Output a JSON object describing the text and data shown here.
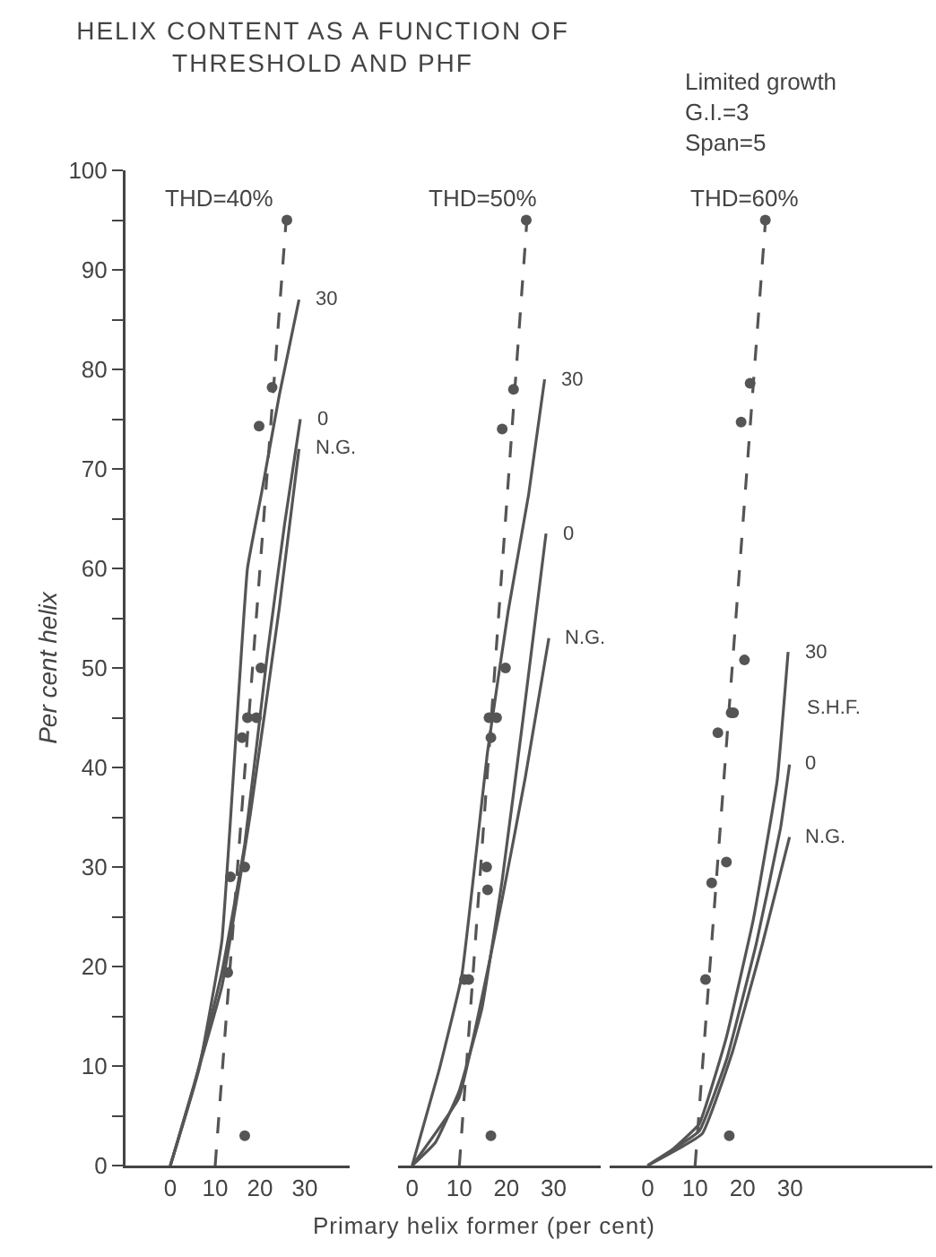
{
  "chart_data": [
    {
      "type": "line",
      "title": "HELIX CONTENT AS A FUNCTION OF THRESHOLD AND PHF",
      "subtitle": "THD=40%",
      "ylabel": "Per cent helix",
      "marker": "none",
      "xlim": [
        -10,
        40
      ],
      "xticks": [
        0,
        10,
        20,
        30
      ],
      "ylim": [
        0,
        100
      ],
      "yticks": [
        0,
        {
          "value": 5,
          "label": null
        },
        10,
        {
          "value": 15,
          "label": null
        },
        20,
        {
          "value": 25,
          "label": null
        },
        30,
        {
          "value": 35,
          "label": null
        },
        40,
        {
          "value": 45,
          "label": null
        },
        50,
        {
          "value": 55,
          "label": null
        },
        60,
        {
          "value": 65,
          "label": null
        },
        70,
        {
          "value": 75,
          "label": null
        },
        80,
        {
          "value": 85,
          "label": null
        },
        90,
        {
          "value": 95,
          "label": null
        },
        100
      ],
      "series": [
        {
          "name": "30",
          "color": "#555555",
          "x": [
            0,
            6.4,
            11.5,
            17.2,
            20.4,
            24.3,
            28.7
          ],
          "values": [
            0,
            9.7,
            22.6,
            60,
            67.7,
            77.4,
            87
          ]
        },
        {
          "name": "0",
          "color": "#555555",
          "x": [
            0,
            5.1,
            11.5,
            16.6,
            21.7,
            25.5,
            29
          ],
          "values": [
            0,
            7.7,
            19.4,
            32.3,
            51.6,
            64.5,
            75
          ]
        },
        {
          "name": "N.G.",
          "color": "#555555",
          "x": [
            0,
            11.5,
            17.9,
            24.3,
            28.7
          ],
          "values": [
            0,
            18,
            35.5,
            56,
            72
          ]
        },
        {
          "type": "line",
          "line_style": "dashed",
          "color": "#555555",
          "x": [
            10,
            26
          ],
          "values": [
            0,
            96
          ]
        },
        {
          "type": "scatter",
          "marker": "circle",
          "color": "#555555",
          "x": [
            16.6,
            12.8,
            13.4,
            16.6,
            16,
            17.2,
            19.2,
            20.2,
            19.8,
            22.7,
            26
          ],
          "values": [
            3,
            19.4,
            29,
            30,
            43,
            45,
            45,
            50,
            74.3,
            78.2,
            95
          ]
        }
      ]
    },
    {
      "type": "line",
      "subtitle": "THD=50%",
      "xlabel": "Primary helix former (per cent)",
      "tick_labels": "x",
      "marker": "none",
      "xlim": [
        -3,
        40
      ],
      "xticks": [
        0,
        10,
        20,
        30
      ],
      "ylim": [
        0,
        100
      ],
      "series": [
        {
          "name": "30",
          "color": "#555555",
          "x": [
            0,
            5.6,
            10.5,
            16,
            20.4,
            24.7,
            28.1
          ],
          "values": [
            0,
            9.4,
            19,
            41.6,
            55.8,
            67.4,
            79
          ]
        },
        {
          "name": "0",
          "color": "#555555",
          "x": [
            0,
            4.9,
            9.9,
            14.8,
            19.1,
            23.5,
            28.4
          ],
          "values": [
            0,
            2.3,
            7.4,
            15.8,
            28.7,
            44.8,
            63.5
          ]
        },
        {
          "name": "N.G.",
          "color": "#555555",
          "x": [
            0,
            9.9,
            19.1,
            24,
            29
          ],
          "values": [
            0,
            6.8,
            26.8,
            39,
            53
          ]
        },
        {
          "type": "line",
          "line_style": "dashed",
          "color": "#555555",
          "x": [
            10,
            24.5
          ],
          "values": [
            0,
            96
          ]
        },
        {
          "type": "scatter",
          "marker": "circle",
          "color": "#555555",
          "x": [
            16.7,
            11.1,
            12,
            15.8,
            16,
            16.7,
            16.3,
            17.9,
            19.8,
            19.1,
            21.5,
            24.2
          ],
          "values": [
            3,
            18.7,
            18.7,
            30,
            27.7,
            43,
            45,
            45,
            50,
            74,
            78,
            95
          ]
        }
      ]
    },
    {
      "type": "line",
      "subtitle": "THD=60%",
      "tick_labels": "x",
      "marker": "none",
      "xlim": [
        -8,
        60
      ],
      "xticks": [
        0,
        10,
        20,
        30
      ],
      "ylim": [
        0,
        100
      ],
      "annotations": [
        "Limited growth\nG.I.=3\nSpan=5",
        "S.H.F."
      ],
      "series": [
        {
          "name": "30",
          "color": "#555555",
          "x": [
            0,
            5.2,
            10.9,
            16.6,
            22.3,
            27.3,
            29.6
          ],
          "values": [
            0,
            1.6,
            4.2,
            12.9,
            24.8,
            38.7,
            51.6
          ]
        },
        {
          "name": "0",
          "color": "#555555",
          "x": [
            0,
            10.9,
            16.6,
            22.9,
            28,
            29.9
          ],
          "values": [
            0,
            3.5,
            10.6,
            22.3,
            33.9,
            40.3
          ]
        },
        {
          "name": "N.G.",
          "color": "#555555",
          "x": [
            0,
            11.5,
            17.8,
            24.2,
            29.9
          ],
          "values": [
            0,
            3.2,
            11.3,
            22.3,
            33
          ]
        },
        {
          "type": "line",
          "line_style": "dashed",
          "color": "#555555",
          "x": [
            10,
            25
          ],
          "values": [
            0,
            96
          ]
        },
        {
          "type": "scatter",
          "marker": "circle",
          "color": "#555555",
          "x": [
            17.2,
            12.2,
            13.5,
            16.6,
            14.8,
            17.6,
            18.1,
            20.4,
            19.7,
            21.6,
            24.8
          ],
          "values": [
            3,
            18.7,
            28.4,
            30.5,
            43.5,
            45.5,
            45.5,
            50.8,
            74.7,
            78.6,
            95
          ]
        }
      ]
    }
  ]
}
